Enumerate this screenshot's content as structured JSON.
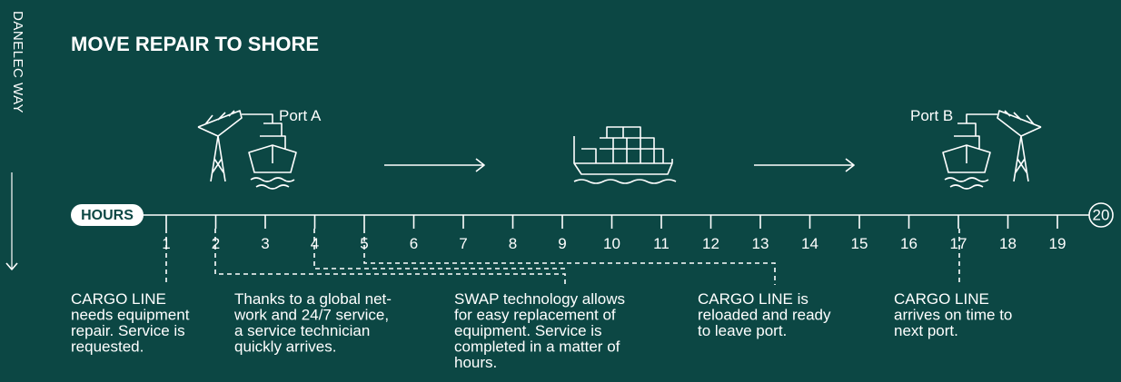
{
  "side_label": "DANELEC WAY",
  "title": "MOVE REPAIR TO SHORE",
  "ports": {
    "a": "Port A",
    "b": "Port B"
  },
  "timeline": {
    "label": "HOURS",
    "end": 20,
    "hours": [
      1,
      2,
      3,
      4,
      5,
      6,
      7,
      8,
      9,
      10,
      11,
      12,
      13,
      14,
      15,
      16,
      17,
      18,
      19
    ]
  },
  "notes": [
    {
      "lines": [
        "CARGO LINE",
        "needs equipment",
        "repair. Service is",
        "requested."
      ]
    },
    {
      "lines": [
        "Thanks to a global net-",
        "work and 24/7 service,",
        "a service technician",
        "quickly arrives."
      ]
    },
    {
      "lines": [
        "SWAP technology allows",
        "for easy replacement of",
        "equipment. Service is",
        "completed in a matter of",
        "hours."
      ]
    },
    {
      "lines": [
        "CARGO LINE is",
        "reloaded and ready",
        "to leave port."
      ]
    },
    {
      "lines": [
        "CARGO LINE",
        "arrives on time to",
        "next port."
      ]
    }
  ]
}
